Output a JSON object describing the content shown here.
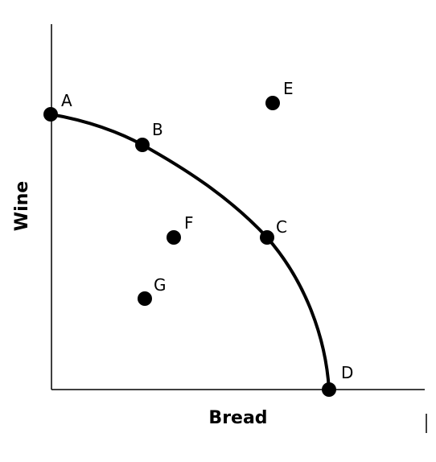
{
  "axes": {
    "y_label": "Wine",
    "x_label": "Bread"
  },
  "points": [
    {
      "label": "A"
    },
    {
      "label": "B"
    },
    {
      "label": "C"
    },
    {
      "label": "D"
    },
    {
      "label": "E"
    },
    {
      "label": "F"
    },
    {
      "label": "G"
    }
  ]
}
